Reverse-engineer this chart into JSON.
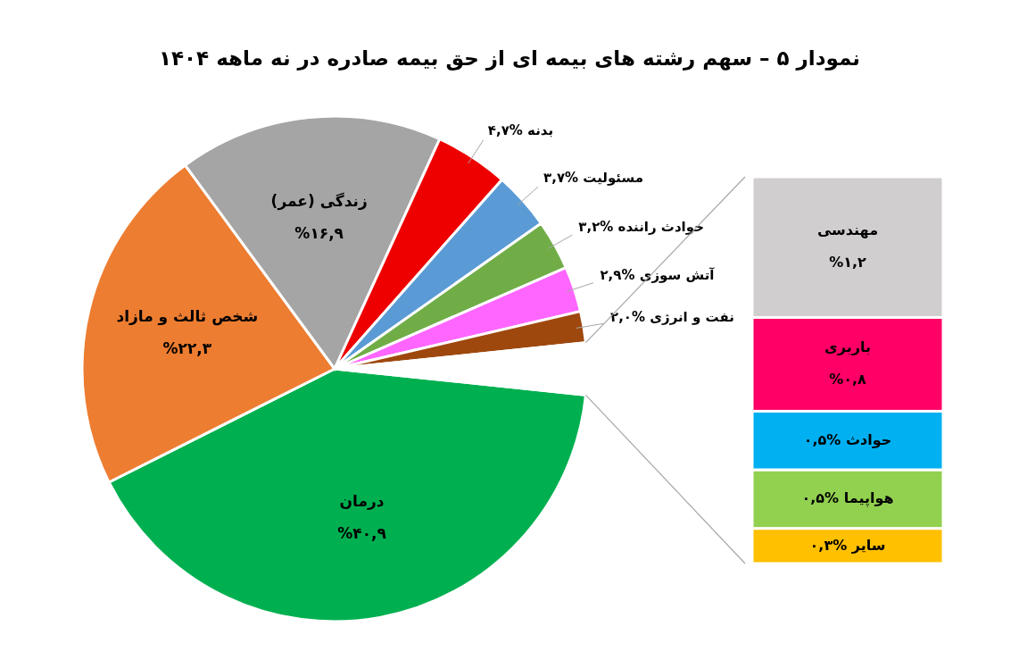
{
  "chart_data": [
    {
      "type": "pie",
      "title": "نمودار ۵ – سهم رشته های بیمه ای از حق بیمه صادره در نه ماهه ۱۴۰۴",
      "categories": [
        "درمان",
        "شخص ثالث و مازاد",
        "زندگی (عمر)",
        "بدنه",
        "مسئولیت",
        "حوادث راننده",
        "آتش سوزی",
        "نفت و انرژی",
        null
      ],
      "values": [
        40.9,
        22.3,
        16.9,
        4.7,
        3.7,
        3.2,
        2.9,
        2.0,
        3.3
      ],
      "colors": [
        "#00b050",
        "#ed7d31",
        "#a5a5a5",
        "#ee0000",
        "#5b9bd5",
        "#70ad47",
        "#ff66ff",
        "#9e480e",
        "#ffffff"
      ],
      "value_labels": [
        "%۴۰,۹",
        "%۲۲,۳",
        "%۱۶,۹",
        "%۴,۷",
        "%۳,۷",
        "%۳,۲",
        "%۲,۹",
        "%۲,۰",
        null
      ]
    },
    {
      "type": "bar",
      "stacked": true,
      "categories": [
        null
      ],
      "series": [
        {
          "name": "سایر",
          "color": "#ffc000",
          "values": [
            0.3
          ],
          "value_labels": [
            "%۰,۳"
          ]
        },
        {
          "name": "هواپیما",
          "color": "#92d050",
          "values": [
            0.5
          ],
          "value_labels": [
            "%۰,۵"
          ]
        },
        {
          "name": "حوادث",
          "color": "#00b0f0",
          "values": [
            0.5
          ],
          "value_labels": [
            "%۰,۵"
          ]
        },
        {
          "name": "باربری",
          "color": "#ff0066",
          "values": [
            0.8
          ],
          "value_labels": [
            "%۰,۸"
          ]
        },
        {
          "name": "مهندسی",
          "color": "#d0cece",
          "values": [
            1.2
          ],
          "value_labels": [
            "%۱,۲"
          ]
        }
      ]
    }
  ]
}
